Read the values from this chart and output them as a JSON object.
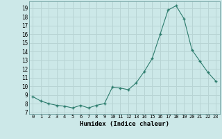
{
  "x": [
    0,
    1,
    2,
    3,
    4,
    5,
    6,
    7,
    8,
    9,
    10,
    11,
    12,
    13,
    14,
    15,
    16,
    17,
    18,
    19,
    20,
    21,
    22,
    23
  ],
  "y": [
    8.8,
    8.3,
    8.0,
    7.8,
    7.7,
    7.5,
    7.8,
    7.5,
    7.8,
    8.0,
    9.9,
    9.8,
    9.6,
    10.4,
    11.7,
    13.2,
    16.0,
    18.8,
    19.3,
    17.8,
    14.2,
    12.9,
    11.6,
    10.6
  ],
  "line_color": "#2e7d6e",
  "marker": "+",
  "bg_color": "#cce8e8",
  "grid_color": "#b8d4d4",
  "xlabel": "Humidex (Indice chaleur)",
  "yticks": [
    7,
    8,
    9,
    10,
    11,
    12,
    13,
    14,
    15,
    16,
    17,
    18,
    19
  ],
  "xlim": [
    -0.5,
    23.5
  ],
  "ylim": [
    6.8,
    19.8
  ]
}
